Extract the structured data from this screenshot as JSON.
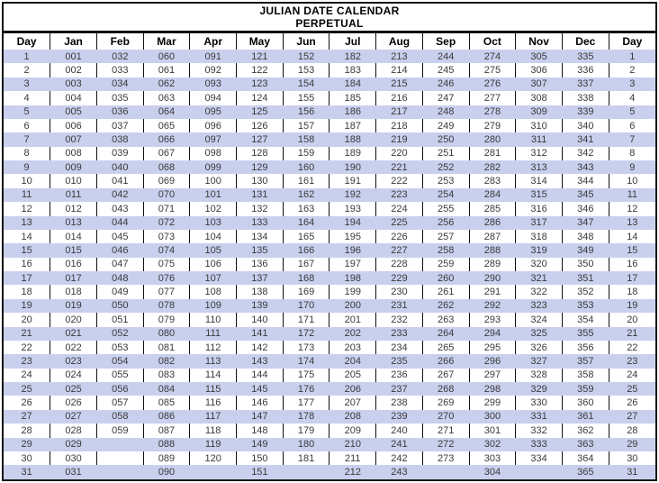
{
  "title": {
    "line1": "JULIAN DATE CALENDAR",
    "line2": "PERPETUAL"
  },
  "colors": {
    "row_highlight": "#c9d0ee",
    "border": "#111111",
    "data_text": "#3a3a3a"
  },
  "table": {
    "columns": [
      "Day",
      "Jan",
      "Feb",
      "Mar",
      "Apr",
      "May",
      "Jun",
      "Jul",
      "Aug",
      "Sep",
      "Oct",
      "Nov",
      "Dec",
      "Day"
    ],
    "rows": [
      {
        "day": "1",
        "values": [
          "001",
          "032",
          "060",
          "091",
          "121",
          "152",
          "182",
          "213",
          "244",
          "274",
          "305",
          "335"
        ]
      },
      {
        "day": "2",
        "values": [
          "002",
          "033",
          "061",
          "092",
          "122",
          "153",
          "183",
          "214",
          "245",
          "275",
          "306",
          "336"
        ]
      },
      {
        "day": "3",
        "values": [
          "003",
          "034",
          "062",
          "093",
          "123",
          "154",
          "184",
          "215",
          "246",
          "276",
          "307",
          "337"
        ]
      },
      {
        "day": "4",
        "values": [
          "004",
          "035",
          "063",
          "094",
          "124",
          "155",
          "185",
          "216",
          "247",
          "277",
          "308",
          "338"
        ]
      },
      {
        "day": "5",
        "values": [
          "005",
          "036",
          "064",
          "095",
          "125",
          "156",
          "186",
          "217",
          "248",
          "278",
          "309",
          "339"
        ]
      },
      {
        "day": "6",
        "values": [
          "006",
          "037",
          "065",
          "096",
          "126",
          "157",
          "187",
          "218",
          "249",
          "279",
          "310",
          "340"
        ]
      },
      {
        "day": "7",
        "values": [
          "007",
          "038",
          "066",
          "097",
          "127",
          "158",
          "188",
          "219",
          "250",
          "280",
          "311",
          "341"
        ]
      },
      {
        "day": "8",
        "values": [
          "008",
          "039",
          "067",
          "098",
          "128",
          "159",
          "189",
          "220",
          "251",
          "281",
          "312",
          "342"
        ]
      },
      {
        "day": "9",
        "values": [
          "009",
          "040",
          "068",
          "099",
          "129",
          "160",
          "190",
          "221",
          "252",
          "282",
          "313",
          "343"
        ]
      },
      {
        "day": "10",
        "values": [
          "010",
          "041",
          "069",
          "100",
          "130",
          "161",
          "191",
          "222",
          "253",
          "283",
          "314",
          "344"
        ]
      },
      {
        "day": "11",
        "values": [
          "011",
          "042",
          "070",
          "101",
          "131",
          "162",
          "192",
          "223",
          "254",
          "284",
          "315",
          "345"
        ]
      },
      {
        "day": "12",
        "values": [
          "012",
          "043",
          "071",
          "102",
          "132",
          "163",
          "193",
          "224",
          "255",
          "285",
          "316",
          "346"
        ]
      },
      {
        "day": "13",
        "values": [
          "013",
          "044",
          "072",
          "103",
          "133",
          "164",
          "194",
          "225",
          "256",
          "286",
          "317",
          "347"
        ]
      },
      {
        "day": "14",
        "values": [
          "014",
          "045",
          "073",
          "104",
          "134",
          "165",
          "195",
          "226",
          "257",
          "287",
          "318",
          "348"
        ]
      },
      {
        "day": "15",
        "values": [
          "015",
          "046",
          "074",
          "105",
          "135",
          "166",
          "196",
          "227",
          "258",
          "288",
          "319",
          "349"
        ]
      },
      {
        "day": "16",
        "values": [
          "016",
          "047",
          "075",
          "106",
          "136",
          "167",
          "197",
          "228",
          "259",
          "289",
          "320",
          "350"
        ]
      },
      {
        "day": "17",
        "values": [
          "017",
          "048",
          "076",
          "107",
          "137",
          "168",
          "198",
          "229",
          "260",
          "290",
          "321",
          "351"
        ]
      },
      {
        "day": "18",
        "values": [
          "018",
          "049",
          "077",
          "108",
          "138",
          "169",
          "199",
          "230",
          "261",
          "291",
          "322",
          "352"
        ]
      },
      {
        "day": "19",
        "values": [
          "019",
          "050",
          "078",
          "109",
          "139",
          "170",
          "200",
          "231",
          "262",
          "292",
          "323",
          "353"
        ]
      },
      {
        "day": "20",
        "values": [
          "020",
          "051",
          "079",
          "110",
          "140",
          "171",
          "201",
          "232",
          "263",
          "293",
          "324",
          "354"
        ]
      },
      {
        "day": "21",
        "values": [
          "021",
          "052",
          "080",
          "111",
          "141",
          "172",
          "202",
          "233",
          "264",
          "294",
          "325",
          "355"
        ]
      },
      {
        "day": "22",
        "values": [
          "022",
          "053",
          "081",
          "112",
          "142",
          "173",
          "203",
          "234",
          "265",
          "295",
          "326",
          "356"
        ]
      },
      {
        "day": "23",
        "values": [
          "023",
          "054",
          "082",
          "113",
          "143",
          "174",
          "204",
          "235",
          "266",
          "296",
          "327",
          "357"
        ]
      },
      {
        "day": "24",
        "values": [
          "024",
          "055",
          "083",
          "114",
          "144",
          "175",
          "205",
          "236",
          "267",
          "297",
          "328",
          "358"
        ]
      },
      {
        "day": "25",
        "values": [
          "025",
          "056",
          "084",
          "115",
          "145",
          "176",
          "206",
          "237",
          "268",
          "298",
          "329",
          "359"
        ]
      },
      {
        "day": "26",
        "values": [
          "026",
          "057",
          "085",
          "116",
          "146",
          "177",
          "207",
          "238",
          "269",
          "299",
          "330",
          "360"
        ]
      },
      {
        "day": "27",
        "values": [
          "027",
          "058",
          "086",
          "117",
          "147",
          "178",
          "208",
          "239",
          "270",
          "300",
          "331",
          "361"
        ]
      },
      {
        "day": "28",
        "values": [
          "028",
          "059",
          "087",
          "118",
          "148",
          "179",
          "209",
          "240",
          "271",
          "301",
          "332",
          "362"
        ]
      },
      {
        "day": "29",
        "values": [
          "029",
          "",
          "088",
          "119",
          "149",
          "180",
          "210",
          "241",
          "272",
          "302",
          "333",
          "363"
        ]
      },
      {
        "day": "30",
        "values": [
          "030",
          "",
          "089",
          "120",
          "150",
          "181",
          "211",
          "242",
          "273",
          "303",
          "334",
          "364"
        ]
      },
      {
        "day": "31",
        "values": [
          "031",
          "",
          "090",
          "",
          "151",
          "",
          "212",
          "243",
          "",
          "304",
          "",
          "365"
        ]
      }
    ]
  }
}
